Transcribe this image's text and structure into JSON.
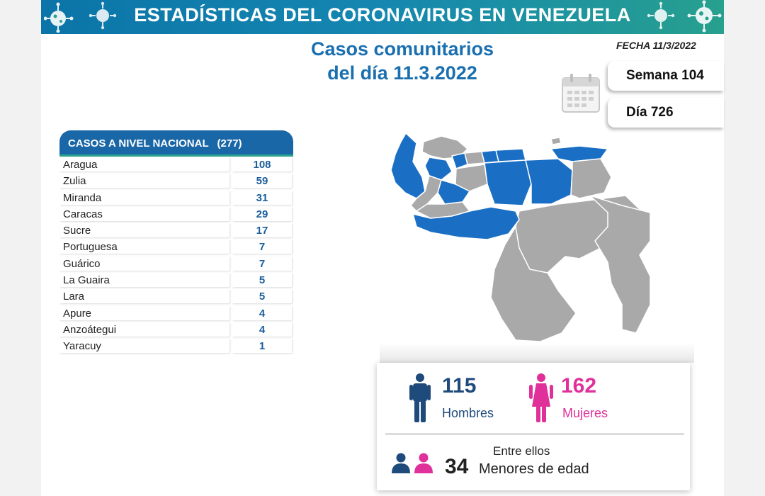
{
  "banner": {
    "title": "ESTADÍSTICAS DEL CORONAVIRUS EN VENEZUELA"
  },
  "header": {
    "title_line1": "Casos comunitarios",
    "title_line2": "del día 11.3.2022",
    "fecha": "FECHA 11/3/2022",
    "semana": "Semana 104",
    "dia": "Día 726"
  },
  "table": {
    "heading": "CASOS A NIVEL NACIONAL",
    "total": "(277)",
    "rows": [
      {
        "state": "Aragua",
        "cases": "108"
      },
      {
        "state": "Zulia",
        "cases": "59"
      },
      {
        "state": "Miranda",
        "cases": "31"
      },
      {
        "state": "Caracas",
        "cases": "29"
      },
      {
        "state": "Sucre",
        "cases": "17"
      },
      {
        "state": "Portuguesa",
        "cases": "7"
      },
      {
        "state": "Guárico",
        "cases": "7"
      },
      {
        "state": "La Guaira",
        "cases": "5"
      },
      {
        "state": "Lara",
        "cases": "5"
      },
      {
        "state": "Apure",
        "cases": "4"
      },
      {
        "state": "Anzoátegui",
        "cases": "4"
      },
      {
        "state": "Yaracuy",
        "cases": "1"
      }
    ]
  },
  "stats": {
    "hombres_value": "115",
    "hombres_label": "Hombres",
    "mujeres_value": "162",
    "mujeres_label": "Mujeres",
    "entre_ellos": "Entre ellos",
    "menores_value": "34",
    "menores_label": "Menores de edad"
  },
  "colors": {
    "banner_start": "#0b74a8",
    "banner_end": "#27a08e",
    "affected_state": "#1a6fc4",
    "unaffected_state": "#a9a9a9",
    "hombres": "#1e4a7c",
    "mujeres": "#e0309a"
  },
  "icons": [
    "virus-icon",
    "calendar-icon",
    "man-icon",
    "woman-icon",
    "children-icon"
  ]
}
